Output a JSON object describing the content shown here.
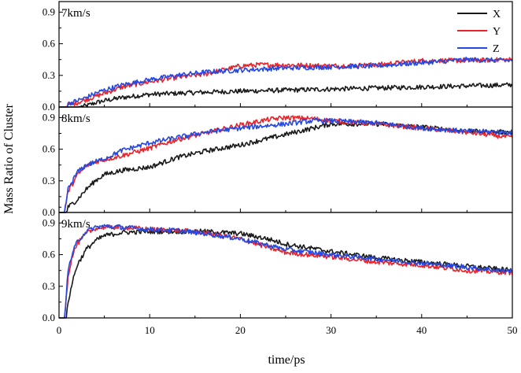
{
  "chart_data": {
    "type": "line",
    "xlabel": "time/ps",
    "ylabel": "Mass Ratio of Cluster",
    "xlim": [
      0,
      50
    ],
    "xticks": [
      "0",
      "10",
      "20",
      "30",
      "40",
      "50"
    ],
    "legend": {
      "placement": "top-right",
      "entries": [
        {
          "name": "X",
          "color": "#1a1a1a"
        },
        {
          "name": "Y",
          "color": "#e8242a"
        },
        {
          "name": "Z",
          "color": "#2548e0"
        }
      ]
    },
    "panels": [
      {
        "label": "7km/s",
        "ylim": [
          0,
          1.0
        ],
        "yticks": [
          "0.0",
          "0.3",
          "0.6",
          "0.9"
        ],
        "series": [
          {
            "name": "X",
            "color": "#1a1a1a",
            "x": [
              0,
              1,
              2,
              3,
              4,
              5,
              7,
              10,
              13,
              16,
              20,
              25,
              30,
              35,
              40,
              45,
              50
            ],
            "y": [
              0,
              0,
              0,
              0.01,
              0.04,
              0.06,
              0.09,
              0.12,
              0.13,
              0.14,
              0.15,
              0.16,
              0.17,
              0.18,
              0.19,
              0.2,
              0.21
            ]
          },
          {
            "name": "Y",
            "color": "#e8242a",
            "x": [
              0,
              0.7,
              1,
              2,
              3,
              4,
              5,
              7,
              10,
              13,
              16,
              18,
              20,
              22,
              25,
              30,
              35,
              40,
              45,
              50
            ],
            "y": [
              0,
              0,
              0.02,
              0.04,
              0.07,
              0.1,
              0.13,
              0.19,
              0.24,
              0.28,
              0.31,
              0.35,
              0.39,
              0.4,
              0.4,
              0.39,
              0.4,
              0.44,
              0.44,
              0.45
            ]
          },
          {
            "name": "Z",
            "color": "#2548e0",
            "x": [
              0,
              0.7,
              1,
              2,
              3,
              4,
              5,
              7,
              10,
              13,
              16,
              20,
              25,
              30,
              35,
              40,
              45,
              50
            ],
            "y": [
              0,
              0,
              0.03,
              0.06,
              0.09,
              0.13,
              0.16,
              0.21,
              0.26,
              0.3,
              0.33,
              0.35,
              0.37,
              0.38,
              0.39,
              0.42,
              0.45,
              0.44
            ]
          }
        ]
      },
      {
        "label": "8km/s",
        "ylim": [
          0,
          1.0
        ],
        "yticks": [
          "0.0",
          "0.3",
          "0.6",
          "0.9"
        ],
        "series": [
          {
            "name": "X",
            "color": "#1a1a1a",
            "x": [
              0,
              0.8,
              1,
              2,
              3,
              4,
              5,
              7,
              10,
              13,
              16,
              20,
              25,
              28,
              30,
              35,
              40,
              45,
              50
            ],
            "y": [
              0,
              0,
              0.05,
              0.12,
              0.22,
              0.3,
              0.36,
              0.4,
              0.43,
              0.52,
              0.58,
              0.64,
              0.74,
              0.8,
              0.84,
              0.84,
              0.81,
              0.77,
              0.76
            ]
          },
          {
            "name": "Y",
            "color": "#e8242a",
            "x": [
              0,
              0.6,
              1,
              2,
              3,
              4,
              5,
              7,
              10,
              13,
              16,
              20,
              23,
              25,
              28,
              30,
              35,
              40,
              45,
              50
            ],
            "y": [
              0,
              0,
              0.2,
              0.35,
              0.44,
              0.48,
              0.5,
              0.54,
              0.61,
              0.69,
              0.75,
              0.83,
              0.88,
              0.9,
              0.89,
              0.87,
              0.84,
              0.8,
              0.76,
              0.71
            ]
          },
          {
            "name": "Z",
            "color": "#2548e0",
            "x": [
              0,
              0.6,
              1,
              2,
              3,
              4,
              5,
              7,
              10,
              13,
              16,
              20,
              25,
              28,
              30,
              35,
              40,
              45,
              50
            ],
            "y": [
              0,
              0,
              0.22,
              0.38,
              0.45,
              0.48,
              0.51,
              0.59,
              0.66,
              0.71,
              0.76,
              0.8,
              0.84,
              0.87,
              0.87,
              0.85,
              0.8,
              0.77,
              0.76
            ]
          }
        ]
      },
      {
        "label": "9km/s",
        "ylim": [
          0,
          1.0
        ],
        "yticks": [
          "0.0",
          "0.3",
          "0.6",
          "0.9"
        ],
        "series": [
          {
            "name": "X",
            "color": "#1a1a1a",
            "x": [
              0,
              0.8,
              1,
              1.5,
              2,
              3,
              4,
              5,
              7,
              10,
              13,
              16,
              20,
              23,
              25,
              30,
              35,
              40,
              45,
              50
            ],
            "y": [
              0,
              0,
              0.15,
              0.35,
              0.5,
              0.65,
              0.73,
              0.78,
              0.81,
              0.82,
              0.82,
              0.82,
              0.8,
              0.75,
              0.7,
              0.63,
              0.57,
              0.53,
              0.49,
              0.45
            ]
          },
          {
            "name": "Y",
            "color": "#e8242a",
            "x": [
              0,
              0.6,
              1,
              1.5,
              2,
              3,
              4,
              5,
              7,
              10,
              13,
              16,
              20,
              23,
              25,
              30,
              35,
              40,
              45,
              50
            ],
            "y": [
              0,
              0,
              0.4,
              0.6,
              0.7,
              0.8,
              0.85,
              0.86,
              0.86,
              0.84,
              0.83,
              0.81,
              0.75,
              0.67,
              0.62,
              0.58,
              0.53,
              0.5,
              0.45,
              0.43
            ]
          },
          {
            "name": "Z",
            "color": "#2548e0",
            "x": [
              0,
              0.6,
              1,
              1.5,
              2,
              3,
              4,
              5,
              7,
              10,
              13,
              16,
              20,
              23,
              25,
              30,
              35,
              40,
              45,
              50
            ],
            "y": [
              0,
              0,
              0.45,
              0.62,
              0.72,
              0.82,
              0.86,
              0.87,
              0.86,
              0.84,
              0.83,
              0.8,
              0.75,
              0.69,
              0.65,
              0.6,
              0.56,
              0.52,
              0.48,
              0.44
            ]
          }
        ]
      }
    ]
  }
}
